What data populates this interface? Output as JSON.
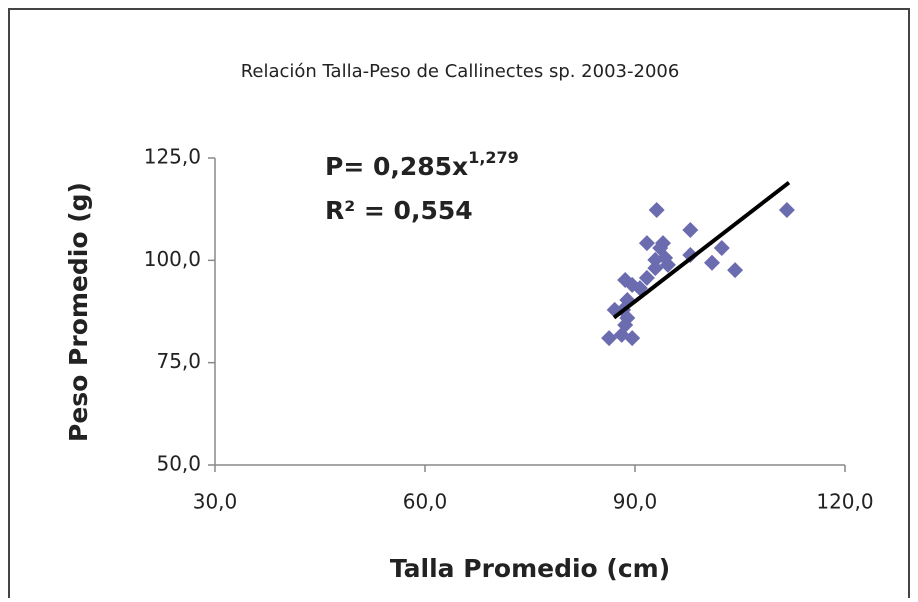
{
  "chart_data": {
    "type": "scatter",
    "title": "Relación Talla-Peso de Callinectes sp. 2003-2006",
    "x_label": "Talla Promedio (cm)",
    "y_label": "Peso Promedio (g)",
    "annotations": {
      "equation": "P= 0,285x",
      "exponent": "1,279",
      "r_squared": "R² = 0,554"
    },
    "series": [
      {
        "color": "#6b6bb0",
        "x": [
          86.3,
          88.1,
          89.6,
          88.6,
          88.9,
          88.3,
          88.9,
          88.6,
          89.6,
          90.7,
          91.7,
          92.9,
          91.7,
          93.6,
          93.1,
          94.0,
          94.3,
          92.9,
          94.7,
          97.9,
          97.9,
          101.0,
          102.4,
          104.3,
          111.7,
          87.1
        ],
        "values": [
          81.0,
          81.8,
          81.0,
          84.2,
          85.9,
          87.9,
          90.3,
          95.2,
          94.0,
          93.2,
          95.7,
          100.1,
          104.2,
          103.0,
          112.3,
          104.2,
          100.6,
          98.1,
          98.9,
          107.4,
          101.3,
          99.4,
          103.0,
          97.6,
          112.3,
          87.9
        ]
      }
    ],
    "trendline": {
      "color": "#000000",
      "x": [
        87,
        112
      ],
      "values": [
        86,
        119
      ]
    },
    "xlim": [
      30,
      120
    ],
    "xticks": [
      {
        "value": 30,
        "label": "30,0"
      },
      {
        "value": 60,
        "label": "60,0"
      },
      {
        "value": 90,
        "label": "90,0"
      },
      {
        "value": 120,
        "label": "120,0"
      }
    ],
    "ylim": [
      50,
      125
    ],
    "yticks": [
      {
        "value": 50,
        "label": "50,0"
      },
      {
        "value": 75,
        "label": "75,0"
      },
      {
        "value": 100,
        "label": "100,0"
      },
      {
        "value": 125,
        "label": "125,0"
      }
    ],
    "grid": false
  }
}
